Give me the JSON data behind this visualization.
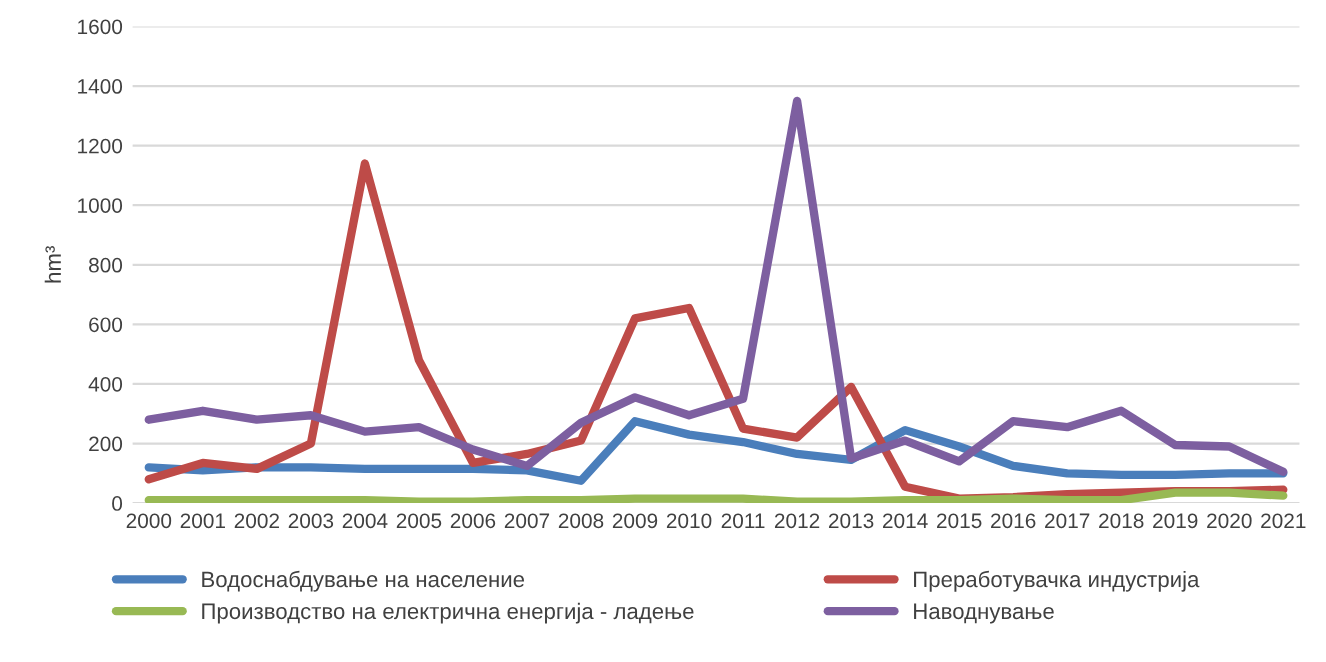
{
  "chart_data": {
    "type": "line",
    "ylabel": "hm³",
    "categories": [
      "2000",
      "2001",
      "2002",
      "2003",
      "2004",
      "2005",
      "2006",
      "2007",
      "2008",
      "2009",
      "2010",
      "2011",
      "2012",
      "2013",
      "2014",
      "2015",
      "2016",
      "2017",
      "2018",
      "2019",
      "2020",
      "2021"
    ],
    "series": [
      {
        "name": "Водоснабдување на население",
        "color": "#4a7ebb",
        "values": [
          120,
          110,
          120,
          120,
          115,
          115,
          115,
          110,
          75,
          275,
          230,
          205,
          165,
          145,
          245,
          190,
          125,
          100,
          95,
          95,
          100,
          100
        ]
      },
      {
        "name": "Преработувачка индустрија",
        "color": "#be4b48",
        "values": [
          80,
          135,
          115,
          200,
          1140,
          480,
          135,
          165,
          210,
          620,
          655,
          250,
          220,
          390,
          55,
          15,
          20,
          30,
          35,
          40,
          40,
          45
        ]
      },
      {
        "name": "Производство на електрична енергија - ладење",
        "color": "#98b954",
        "values": [
          10,
          10,
          10,
          10,
          10,
          5,
          5,
          10,
          10,
          15,
          15,
          15,
          5,
          5,
          10,
          10,
          15,
          10,
          10,
          35,
          35,
          25
        ]
      },
      {
        "name": "Наводнување",
        "color": "#7d5fa0",
        "values": [
          280,
          310,
          280,
          295,
          240,
          255,
          180,
          125,
          270,
          355,
          295,
          350,
          1350,
          150,
          210,
          140,
          275,
          255,
          310,
          195,
          190,
          105
        ]
      }
    ],
    "ylim": [
      0,
      1600
    ],
    "yticks": [
      0,
      200,
      400,
      600,
      800,
      1000,
      1200,
      1400,
      1600
    ],
    "grid": "y",
    "legend": "bottom",
    "line_style": "solid",
    "marker": "none"
  }
}
